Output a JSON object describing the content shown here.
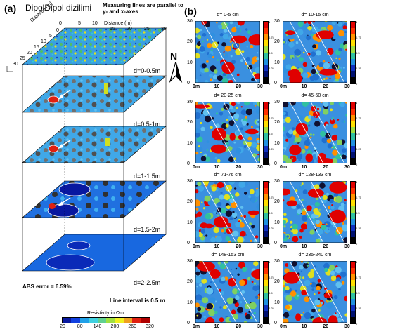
{
  "panel_a": {
    "label": "(a)",
    "title": "DipolDipol dizilimi",
    "note": "Measuring lines are parallel to y- and x-axes",
    "axis_left_label": "Distance (m)",
    "axis_top_label": "Distance (m)",
    "axis_left_ticks": [
      "0",
      "5",
      "10",
      "15",
      "20",
      "25",
      "30"
    ],
    "axis_top_ticks": [
      "0",
      "5",
      "10",
      "15",
      "20",
      "25",
      "30"
    ],
    "depth_labels": [
      "d=0-0.5m",
      "d=0.5-1m",
      "d=1-1.5m",
      "d=1.5-2m",
      "d=2-2.5m"
    ],
    "abs_error": "ABS error = 6.59%",
    "line_interval": "Line interval is 0.5 m",
    "colorbar": {
      "title": "Resistivity in Ωm",
      "ticks": [
        "20",
        "80",
        "140",
        "200",
        "260",
        "320"
      ],
      "colors": [
        "#0a1aa0",
        "#1040e0",
        "#20a0e8",
        "#40d0e0",
        "#60d090",
        "#a0e040",
        "#f0f020",
        "#f0a020",
        "#e02010",
        "#b00000"
      ]
    }
  },
  "panel_b": {
    "label": "(b)",
    "north": "N",
    "maps": [
      {
        "title": "d= 0-5 cm"
      },
      {
        "title": "d= 10-15 cm"
      },
      {
        "title": "d= 20-25 cm"
      },
      {
        "title": "d= 45-50 cm"
      },
      {
        "title": "d= 71-76 cm"
      },
      {
        "title": "d= 128-133 cm"
      },
      {
        "title": "d= 148-153 cm"
      },
      {
        "title": "d= 235-240 cm"
      }
    ],
    "y_ticks": [
      "30",
      "20",
      "10",
      "0"
    ],
    "x_ticks": [
      "0m",
      "10",
      "20",
      "30"
    ],
    "cbar_ticks": [
      "1",
      "0.75",
      "0.5",
      "0.25",
      "0"
    ],
    "cbar_colors": [
      "#e00000",
      "#ff3000",
      "#ff9000",
      "#ffe000",
      "#a0e040",
      "#30c0a0",
      "#2090e0",
      "#1030c0",
      "#001070",
      "#000000"
    ]
  }
}
